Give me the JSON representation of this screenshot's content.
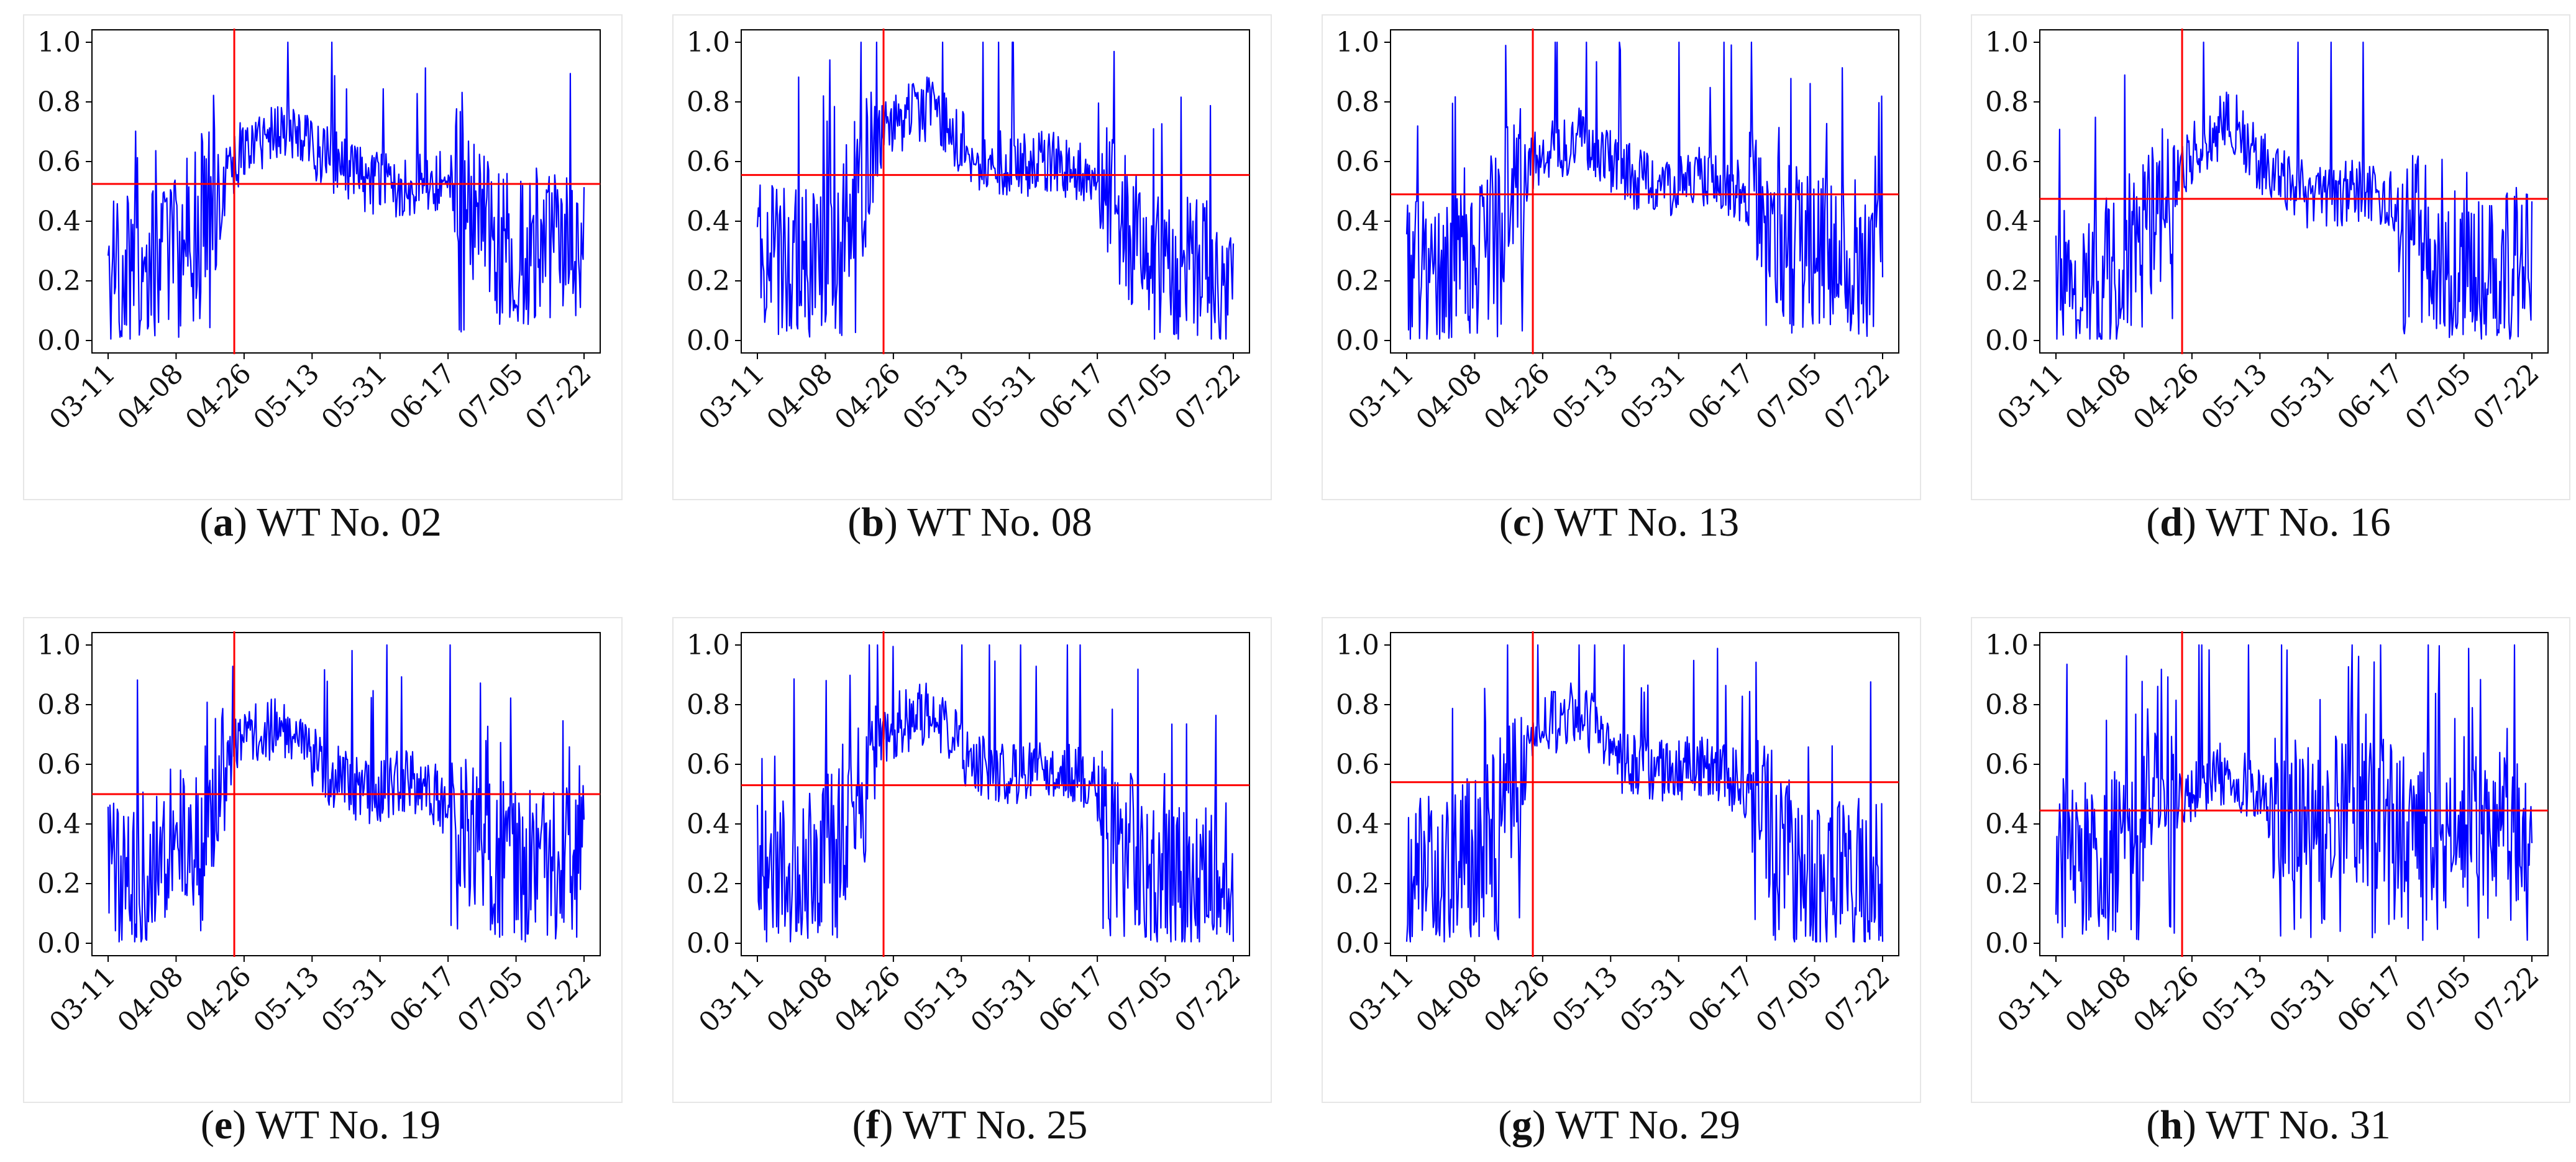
{
  "figure": {
    "panels": [
      {
        "letter": "a",
        "caption": "WT No. 02",
        "threshold": 0.525,
        "split_fraction": 0.28
      },
      {
        "letter": "b",
        "caption": "WT No. 08",
        "threshold": 0.555,
        "split_fraction": 0.28
      },
      {
        "letter": "c",
        "caption": "WT No. 13",
        "threshold": 0.49,
        "split_fraction": 0.28
      },
      {
        "letter": "d",
        "caption": "WT No. 16",
        "threshold": 0.475,
        "split_fraction": 0.28
      },
      {
        "letter": "e",
        "caption": "WT No. 19",
        "threshold": 0.5,
        "split_fraction": 0.28
      },
      {
        "letter": "f",
        "caption": "WT No. 25",
        "threshold": 0.53,
        "split_fraction": 0.28
      },
      {
        "letter": "g",
        "caption": "WT No. 29",
        "threshold": 0.54,
        "split_fraction": 0.28
      },
      {
        "letter": "h",
        "caption": "WT No. 31",
        "threshold": 0.445,
        "split_fraction": 0.28
      }
    ]
  },
  "chart_data": {
    "type": "line",
    "title": "",
    "xlabel": "",
    "ylabel": "",
    "ylim": [
      0.0,
      1.0
    ],
    "y_ticks": [
      "0.0",
      "0.2",
      "0.4",
      "0.6",
      "0.8",
      "1.0"
    ],
    "x_ticks": [
      "03-11",
      "04-08",
      "04-26",
      "05-13",
      "05-31",
      "06-17",
      "07-05",
      "07-22"
    ],
    "series_color": "#0000ff",
    "threshold_color": "#ff0000",
    "series": [
      {
        "name": "WT No. 02",
        "segment_levels": [
          0.22,
          0.25,
          0.38,
          0.62,
          0.72,
          0.62,
          0.53,
          0.52,
          0.55,
          0.3,
          0.3,
          0.32
        ],
        "threshold": 0.525
      },
      {
        "name": "WT No. 08",
        "segment_levels": [
          0.28,
          0.27,
          0.4,
          0.72,
          0.78,
          0.62,
          0.58,
          0.6,
          0.5,
          0.25,
          0.22,
          0.22
        ],
        "threshold": 0.555
      },
      {
        "name": "WT No. 13",
        "segment_levels": [
          0.22,
          0.22,
          0.38,
          0.62,
          0.68,
          0.56,
          0.5,
          0.55,
          0.48,
          0.3,
          0.28,
          0.28
        ],
        "threshold": 0.49
      },
      {
        "name": "WT No. 16",
        "segment_levels": [
          0.18,
          0.2,
          0.35,
          0.6,
          0.75,
          0.55,
          0.47,
          0.5,
          0.45,
          0.25,
          0.25,
          0.26
        ],
        "threshold": 0.475
      },
      {
        "name": "WT No. 19",
        "segment_levels": [
          0.25,
          0.25,
          0.38,
          0.68,
          0.74,
          0.58,
          0.5,
          0.55,
          0.45,
          0.25,
          0.27,
          0.28
        ],
        "threshold": 0.5
      },
      {
        "name": "WT No. 25",
        "segment_levels": [
          0.22,
          0.24,
          0.35,
          0.72,
          0.78,
          0.6,
          0.57,
          0.6,
          0.5,
          0.22,
          0.2,
          0.22
        ],
        "threshold": 0.53
      },
      {
        "name": "WT No. 29",
        "segment_levels": [
          0.22,
          0.25,
          0.38,
          0.72,
          0.78,
          0.6,
          0.57,
          0.6,
          0.5,
          0.25,
          0.22,
          0.24
        ],
        "threshold": 0.54
      },
      {
        "name": "WT No. 31",
        "segment_levels": [
          0.3,
          0.28,
          0.38,
          0.5,
          0.58,
          0.45,
          0.43,
          0.45,
          0.42,
          0.35,
          0.4,
          0.38
        ],
        "threshold": 0.445
      }
    ]
  }
}
